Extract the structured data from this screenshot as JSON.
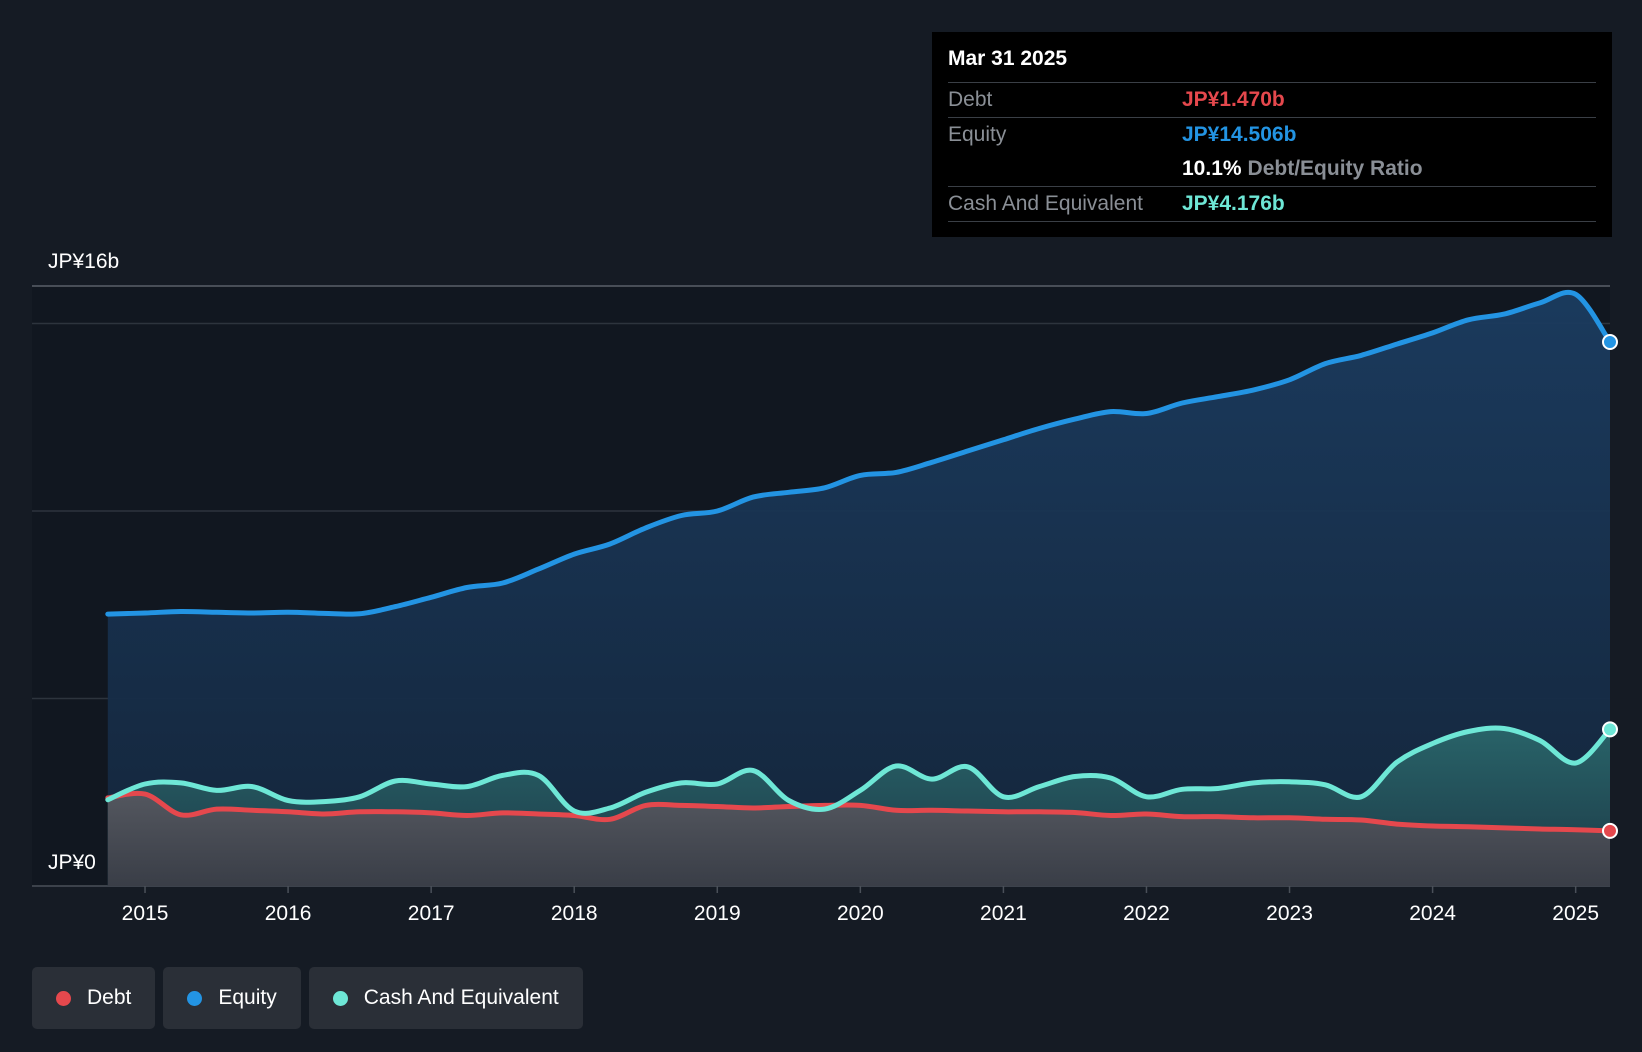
{
  "tooltip": {
    "date": "Mar 31 2025",
    "debt_label": "Debt",
    "debt_value": "JP¥1.470b",
    "equity_label": "Equity",
    "equity_value": "JP¥14.506b",
    "ratio_value": "10.1%",
    "ratio_label": "Debt/Equity Ratio",
    "cash_label": "Cash And Equivalent",
    "cash_value": "JP¥4.176b"
  },
  "axis": {
    "y_top_label": "JP¥16b",
    "y_bottom_label": "JP¥0"
  },
  "legend": {
    "debt": "Debt",
    "equity": "Equity",
    "cash": "Cash And Equivalent"
  },
  "colors": {
    "debt": "#e5484d",
    "equity": "#2394e3",
    "cash": "#6ee7d6",
    "background": "#151b24"
  },
  "chart_data": {
    "type": "area",
    "title": "",
    "xlabel": "",
    "ylabel": "",
    "ylim": [
      0,
      16
    ],
    "xlim": [
      2014.2,
      2025.24
    ],
    "x_ticks": [
      2015,
      2016,
      2017,
      2018,
      2019,
      2020,
      2021,
      2022,
      2023,
      2024,
      2025
    ],
    "gridlines_y": [
      5,
      10,
      15
    ],
    "series": [
      {
        "name": "Equity",
        "x": [
          2014.74,
          2015.0,
          2015.25,
          2015.5,
          2015.75,
          2016.0,
          2016.25,
          2016.5,
          2016.75,
          2017.0,
          2017.25,
          2017.5,
          2017.75,
          2018.0,
          2018.25,
          2018.5,
          2018.75,
          2019.0,
          2019.25,
          2019.5,
          2019.75,
          2020.0,
          2020.25,
          2020.5,
          2020.75,
          2021.0,
          2021.25,
          2021.5,
          2021.75,
          2022.0,
          2022.25,
          2022.5,
          2022.75,
          2023.0,
          2023.25,
          2023.5,
          2023.75,
          2024.0,
          2024.25,
          2024.5,
          2024.75,
          2025.0,
          2025.24
        ],
        "values": [
          7.25,
          7.28,
          7.32,
          7.3,
          7.28,
          7.3,
          7.27,
          7.26,
          7.45,
          7.7,
          7.96,
          8.08,
          8.45,
          8.85,
          9.12,
          9.55,
          9.88,
          10.0,
          10.37,
          10.5,
          10.62,
          10.95,
          11.03,
          11.3,
          11.6,
          11.9,
          12.2,
          12.45,
          12.65,
          12.6,
          12.88,
          13.05,
          13.23,
          13.5,
          13.93,
          14.15,
          14.45,
          14.75,
          15.1,
          15.25,
          15.55,
          15.78,
          14.506
        ]
      },
      {
        "name": "Cash And Equivalent",
        "x": [
          2014.74,
          2015.0,
          2015.25,
          2015.5,
          2015.75,
          2016.0,
          2016.25,
          2016.5,
          2016.75,
          2017.0,
          2017.25,
          2017.5,
          2017.75,
          2018.0,
          2018.25,
          2018.5,
          2018.75,
          2019.0,
          2019.25,
          2019.5,
          2019.75,
          2020.0,
          2020.25,
          2020.5,
          2020.75,
          2021.0,
          2021.25,
          2021.5,
          2021.75,
          2022.0,
          2022.25,
          2022.5,
          2022.75,
          2023.0,
          2023.25,
          2023.5,
          2023.75,
          2024.0,
          2024.25,
          2024.5,
          2024.75,
          2025.0,
          2025.24
        ],
        "values": [
          2.3,
          2.72,
          2.75,
          2.55,
          2.65,
          2.28,
          2.25,
          2.38,
          2.8,
          2.72,
          2.65,
          2.95,
          2.95,
          2.0,
          2.08,
          2.5,
          2.75,
          2.72,
          3.08,
          2.28,
          2.05,
          2.55,
          3.2,
          2.85,
          3.18,
          2.38,
          2.65,
          2.92,
          2.88,
          2.38,
          2.58,
          2.6,
          2.75,
          2.78,
          2.7,
          2.38,
          3.3,
          3.8,
          4.12,
          4.2,
          3.88,
          3.28,
          4.176
        ]
      },
      {
        "name": "Debt",
        "x": [
          2014.74,
          2015.0,
          2015.25,
          2015.5,
          2015.75,
          2016.0,
          2016.25,
          2016.5,
          2016.75,
          2017.0,
          2017.25,
          2017.5,
          2017.75,
          2018.0,
          2018.25,
          2018.5,
          2018.75,
          2019.0,
          2019.25,
          2019.5,
          2019.75,
          2020.0,
          2020.25,
          2020.5,
          2020.75,
          2021.0,
          2021.25,
          2021.5,
          2021.75,
          2022.0,
          2022.25,
          2022.5,
          2022.75,
          2023.0,
          2023.25,
          2023.5,
          2023.75,
          2024.0,
          2024.25,
          2024.5,
          2024.75,
          2025.0,
          2025.24
        ],
        "values": [
          2.35,
          2.45,
          1.9,
          2.05,
          2.02,
          1.98,
          1.92,
          1.98,
          1.98,
          1.95,
          1.88,
          1.95,
          1.92,
          1.88,
          1.78,
          2.15,
          2.15,
          2.12,
          2.08,
          2.12,
          2.15,
          2.15,
          2.02,
          2.02,
          2.0,
          1.98,
          1.98,
          1.96,
          1.88,
          1.92,
          1.85,
          1.85,
          1.82,
          1.82,
          1.78,
          1.76,
          1.65,
          1.6,
          1.58,
          1.55,
          1.52,
          1.5,
          1.47
        ]
      }
    ]
  }
}
